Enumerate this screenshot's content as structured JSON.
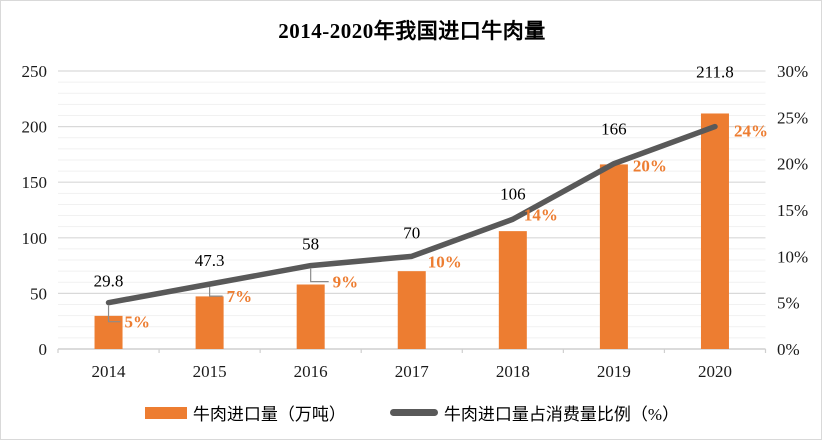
{
  "title": "2014-2020年我国进口牛肉量",
  "chart_data": {
    "type": "bar",
    "subtype": "combo-bar-line-dual-axis",
    "title": "2014-2020年我国进口牛肉量",
    "categories": [
      "2014",
      "2015",
      "2016",
      "2017",
      "2018",
      "2019",
      "2020"
    ],
    "series": [
      {
        "name": "牛肉进口量（万吨）",
        "type": "bar",
        "axis": "left",
        "color": "#ED7D31",
        "values": [
          29.8,
          47.3,
          58,
          70,
          106,
          166,
          211.8
        ],
        "data_labels": [
          "29.8",
          "47.3",
          "58",
          "70",
          "106",
          "166",
          "211.8"
        ],
        "data_label_color": "#000000"
      },
      {
        "name": "牛肉进口量占消费量比例（%）",
        "type": "line",
        "axis": "right",
        "color": "#595959",
        "values": [
          5,
          7,
          9,
          10,
          14,
          20,
          24
        ],
        "data_labels": [
          "5%",
          "7%",
          "9%",
          "10%",
          "14%",
          "20%",
          "24%"
        ],
        "data_label_color": "#ED7D31"
      }
    ],
    "left_axis": {
      "min": 0,
      "max": 250,
      "major_unit": 50,
      "minor_unit": 10,
      "tick_labels": [
        "0",
        "50",
        "100",
        "150",
        "200",
        "250"
      ]
    },
    "right_axis": {
      "min": 0,
      "max": 30,
      "major_unit": 5,
      "tick_labels": [
        "0%",
        "5%",
        "10%",
        "15%",
        "20%",
        "25%",
        "30%"
      ]
    },
    "grid": {
      "horizontal_major": true,
      "horizontal_minor": true,
      "vertical": false
    },
    "legend_position": "bottom"
  },
  "legend": {
    "items": [
      {
        "label": "牛肉进口量（万吨）",
        "swatch": "bar",
        "color": "#ED7D31"
      },
      {
        "label": "牛肉进口量占消费量比例（%）",
        "swatch": "line",
        "color": "#595959"
      }
    ]
  },
  "colors": {
    "bar": "#ED7D31",
    "line": "#595959",
    "pct_label": "#ED7D31",
    "value_label": "#000000",
    "axis_label": "#1a1a1a",
    "grid_major": "#d9d9d9",
    "grid_minor": "#f1f1f1",
    "axis_line": "#cfcfcf",
    "leader_line": "#8c8c8c",
    "background": "#ffffff",
    "border": "#d9d9d9"
  }
}
